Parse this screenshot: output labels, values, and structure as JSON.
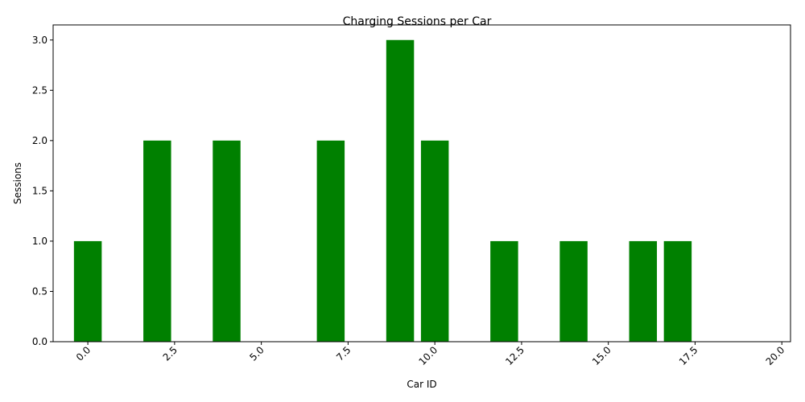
{
  "chart_data": {
    "type": "bar",
    "title": "Charging Sessions per Car",
    "xlabel": "Car ID",
    "ylabel": "Sessions",
    "bar_color": "#008000",
    "xlim": [
      -1,
      20.25
    ],
    "ylim": [
      0,
      3.15
    ],
    "x_ticks": [
      0.0,
      2.5,
      5.0,
      7.5,
      10.0,
      12.5,
      15.0,
      17.5,
      20.0
    ],
    "x_tick_labels": [
      "0.0",
      "2.5",
      "5.0",
      "7.5",
      "10.0",
      "12.5",
      "15.0",
      "17.5",
      "20.0"
    ],
    "y_ticks": [
      0.0,
      0.5,
      1.0,
      1.5,
      2.0,
      2.5,
      3.0
    ],
    "y_tick_labels": [
      "0.0",
      "0.5",
      "1.0",
      "1.5",
      "2.0",
      "2.5",
      "3.0"
    ],
    "bar_width": 0.8,
    "x": [
      0,
      2,
      4,
      7,
      9,
      10,
      12,
      14,
      16,
      17
    ],
    "values": [
      1,
      2,
      2,
      2,
      3,
      2,
      1,
      1,
      1,
      1
    ],
    "grid": false,
    "x_tick_rotation": 45
  }
}
